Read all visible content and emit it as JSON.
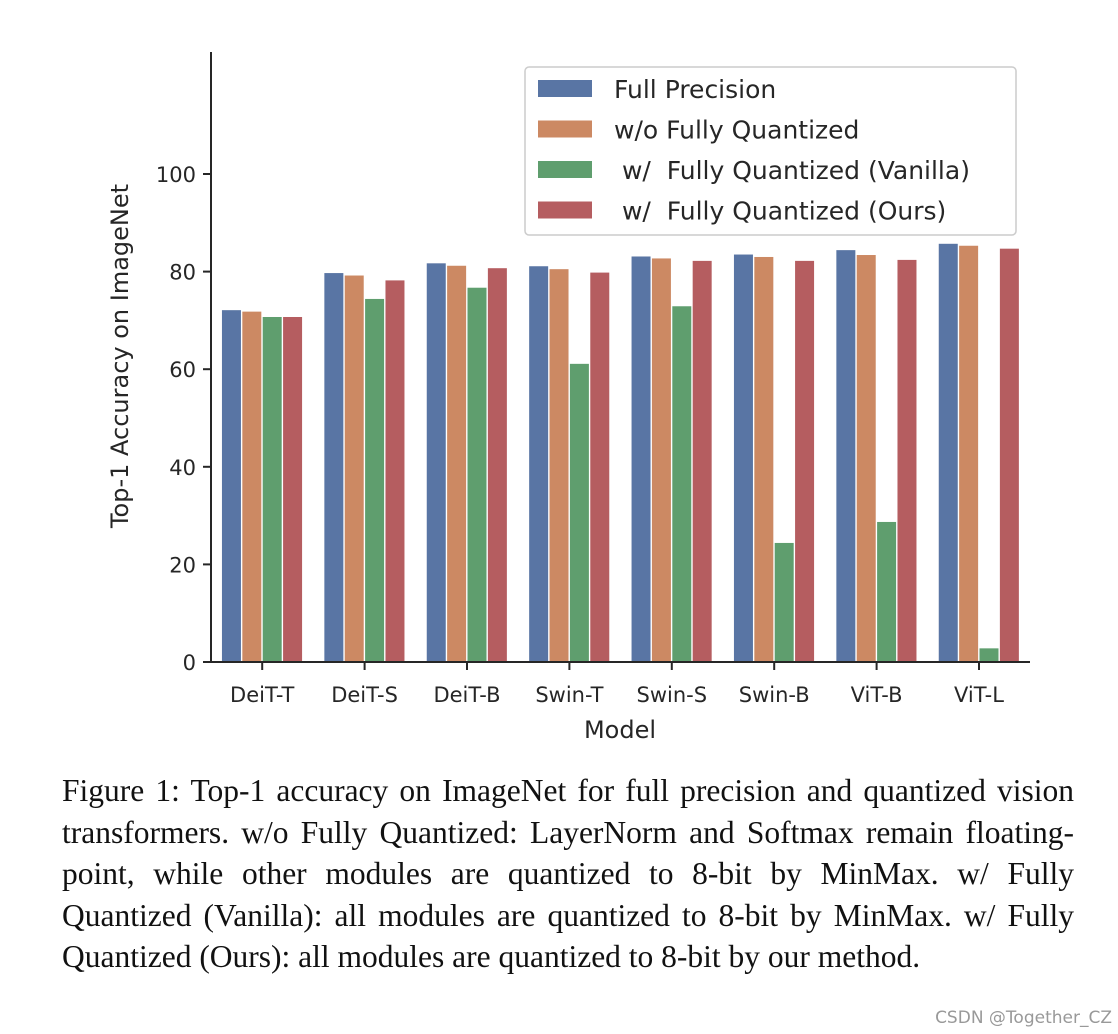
{
  "chart_data": {
    "type": "bar",
    "title": "",
    "xlabel": "Model",
    "ylabel": "Top-1 Accuracy on ImageNet",
    "ylim": [
      0,
      125
    ],
    "yticks": [
      0,
      20,
      40,
      60,
      80,
      100
    ],
    "grid": false,
    "legend_position": "top-right",
    "categories": [
      "DeiT-T",
      "DeiT-S",
      "DeiT-B",
      "Swin-T",
      "Swin-S",
      "Swin-B",
      "ViT-B",
      "ViT-L"
    ],
    "series": [
      {
        "name": "Full Precision",
        "color": "#5975a4",
        "values": [
          72.2,
          79.8,
          81.8,
          81.2,
          83.2,
          83.6,
          84.5,
          85.8
        ]
      },
      {
        "name": "w/o Fully Quantized",
        "color": "#cc8963",
        "values": [
          71.9,
          79.3,
          81.3,
          80.6,
          82.8,
          83.1,
          83.5,
          85.4
        ]
      },
      {
        "name": " w/  Fully Quantized (Vanilla)",
        "color": "#5f9e6e",
        "values": [
          70.8,
          74.5,
          76.8,
          61.2,
          73.0,
          24.5,
          28.8,
          2.9
        ]
      },
      {
        "name": " w/  Fully Quantized (Ours)",
        "color": "#b55d60",
        "values": [
          70.8,
          78.3,
          80.8,
          79.9,
          82.3,
          82.3,
          82.5,
          84.8
        ]
      }
    ]
  },
  "caption": "Figure 1: Top-1 accuracy on ImageNet for full precision and quantized vision transformers. w/o Fully Quantized: LayerNorm and Softmax remain floating-point, while other modules are quantized to 8-bit by MinMax. w/ Fully Quantized (Vanilla): all modules are quantized to 8-bit by MinMax. w/ Fully Quantized (Ours): all modules are quantized to 8-bit by our method.",
  "watermark": "CSDN @Together_CZ"
}
